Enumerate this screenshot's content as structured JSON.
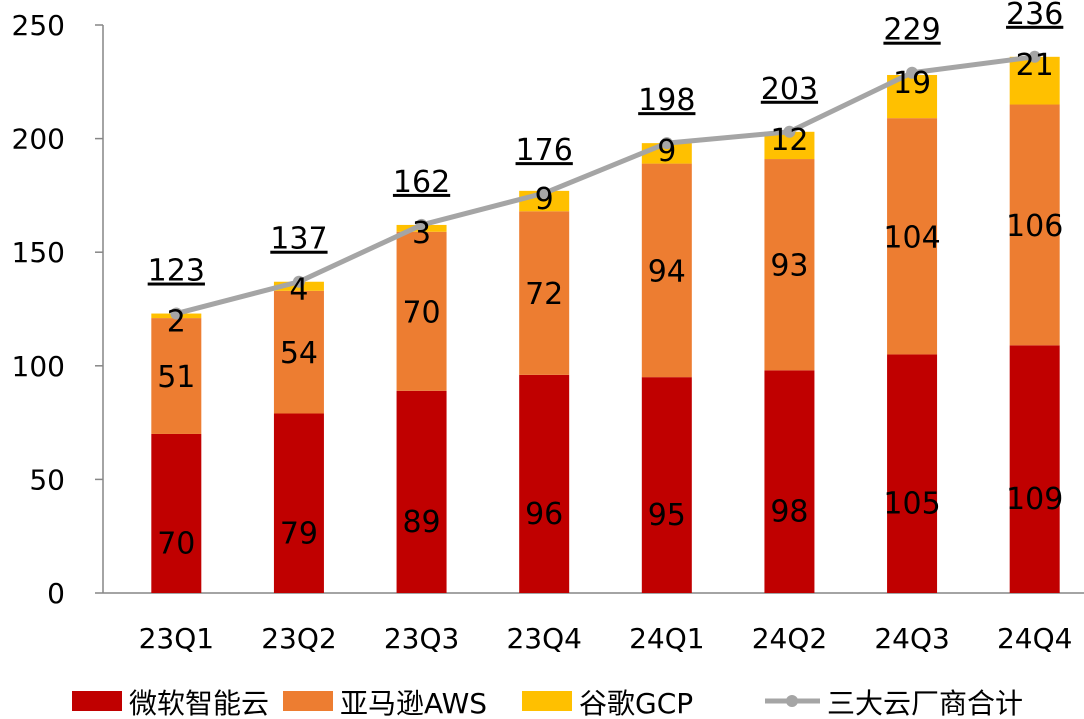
{
  "chart_data": {
    "type": "bar",
    "stacked": true,
    "categories": [
      "23Q1",
      "23Q2",
      "23Q3",
      "23Q4",
      "24Q1",
      "24Q2",
      "24Q3",
      "24Q4"
    ],
    "series": [
      {
        "name": "微软智能云",
        "values": [
          70,
          79,
          89,
          96,
          95,
          98,
          105,
          109
        ],
        "color": "#C00000"
      },
      {
        "name": "亚马逊AWS",
        "values": [
          51,
          54,
          70,
          72,
          94,
          93,
          104,
          106
        ],
        "color": "#ED7D31"
      },
      {
        "name": "谷歌GCP",
        "values": [
          2,
          4,
          3,
          9,
          9,
          12,
          19,
          21
        ],
        "color": "#FFC000"
      }
    ],
    "line_series": {
      "name": "三大云厂商合计",
      "type": "line",
      "values": [
        123,
        137,
        162,
        176,
        198,
        203,
        229,
        236
      ],
      "color": "#A5A5A5"
    },
    "ylim": [
      0,
      250
    ],
    "yticks": [
      0,
      50,
      100,
      150,
      200,
      250
    ],
    "grid": false,
    "legend_position": "bottom"
  }
}
